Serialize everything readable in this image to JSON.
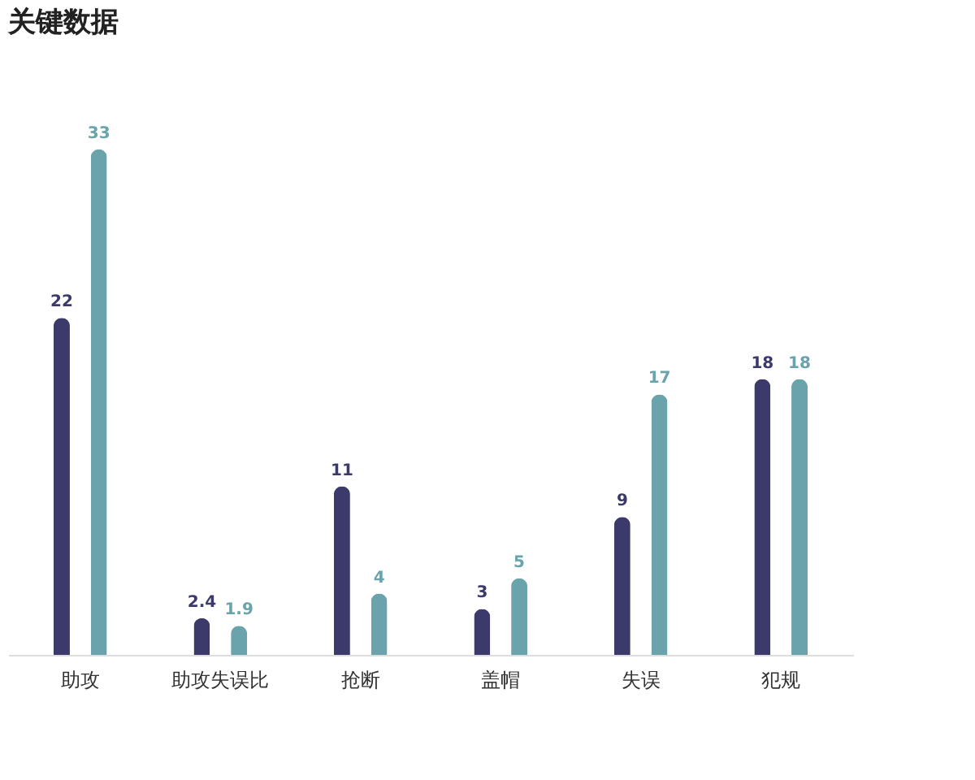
{
  "chart_data": {
    "type": "bar",
    "title": "关键数据",
    "categories": [
      "助攻",
      "助攻失误比",
      "抢断",
      "盖帽",
      "失误",
      "犯规"
    ],
    "series": [
      {
        "color": "#3b3a6b",
        "values": [
          22,
          2.4,
          11,
          3,
          9,
          18
        ]
      },
      {
        "color": "#6aa3ab",
        "values": [
          33,
          1.9,
          4,
          5,
          17,
          18
        ]
      }
    ],
    "data_labels": true
  }
}
